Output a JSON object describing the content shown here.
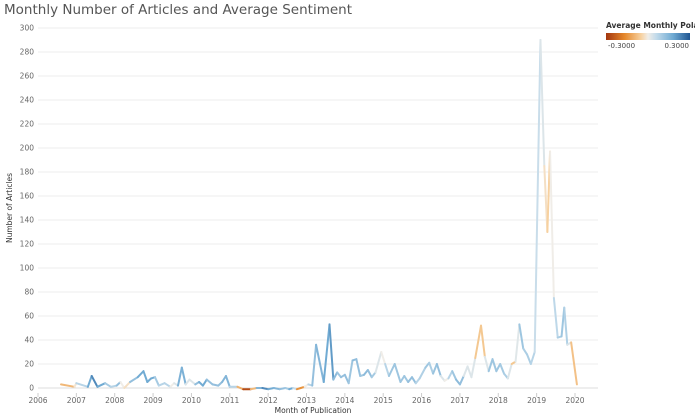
{
  "title": "Monthly Number of Articles and Average Sentiment",
  "legend": {
    "title": "Average Monthly Polari..",
    "min_label": "-0.3000",
    "max_label": "0.3000",
    "colors": [
      "#a3360f",
      "#e5882b",
      "#f7d2a2",
      "#f0ede8",
      "#c1daea",
      "#6ea9d2",
      "#1f5591"
    ]
  },
  "chart_data": {
    "type": "line",
    "title": "Monthly Number of Articles and Average Sentiment",
    "xlabel": "Month of Publication",
    "ylabel": "Number of Articles",
    "ylim": [
      0,
      300
    ],
    "xlim": [
      2006,
      2020.6
    ],
    "y_ticks": [
      0,
      20,
      40,
      60,
      80,
      100,
      120,
      140,
      160,
      180,
      200,
      220,
      240,
      260,
      280,
      300
    ],
    "x_ticks": [
      "2006",
      "2007",
      "2008",
      "2009",
      "2010",
      "2011",
      "2012",
      "2013",
      "2014",
      "2015",
      "2016",
      "2017",
      "2018",
      "2019",
      "2020"
    ],
    "grid": true,
    "color_scale": {
      "field": "Average Monthly Polarity",
      "min": -0.3,
      "max": 0.3
    },
    "series": [
      {
        "points": [
          {
            "x": 2006.6,
            "y": 3,
            "s": -0.1
          },
          {
            "x": 2006.95,
            "y": 1,
            "s": -0.08
          },
          {
            "x": 2007.0,
            "y": 4,
            "s": 0.05
          },
          {
            "x": 2007.3,
            "y": 1,
            "s": 0.1
          },
          {
            "x": 2007.4,
            "y": 10,
            "s": 0.25
          },
          {
            "x": 2007.55,
            "y": 1,
            "s": 0.2
          },
          {
            "x": 2007.75,
            "y": 4,
            "s": 0.15
          },
          {
            "x": 2007.9,
            "y": 1,
            "s": 0.05
          },
          {
            "x": 2008.05,
            "y": 2,
            "s": 0.1
          },
          {
            "x": 2008.15,
            "y": 5,
            "s": 0.15
          },
          {
            "x": 2008.25,
            "y": 0,
            "s": -0.15
          },
          {
            "x": 2008.4,
            "y": 5,
            "s": 0.1
          },
          {
            "x": 2008.6,
            "y": 9,
            "s": 0.15
          },
          {
            "x": 2008.75,
            "y": 14,
            "s": 0.2
          },
          {
            "x": 2008.85,
            "y": 5,
            "s": 0.15
          },
          {
            "x": 2008.95,
            "y": 8,
            "s": 0.2
          },
          {
            "x": 2009.05,
            "y": 9,
            "s": 0.15
          },
          {
            "x": 2009.15,
            "y": 2,
            "s": 0.05
          },
          {
            "x": 2009.3,
            "y": 4,
            "s": 0.1
          },
          {
            "x": 2009.45,
            "y": 1,
            "s": 0.05
          },
          {
            "x": 2009.55,
            "y": 4,
            "s": -0.05
          },
          {
            "x": 2009.65,
            "y": 2,
            "s": 0.1
          },
          {
            "x": 2009.75,
            "y": 17,
            "s": 0.22
          },
          {
            "x": 2009.85,
            "y": 3,
            "s": 0.1
          },
          {
            "x": 2009.95,
            "y": 7,
            "s": -0.05
          },
          {
            "x": 2010.1,
            "y": 3,
            "s": 0.1
          },
          {
            "x": 2010.2,
            "y": 5,
            "s": 0.15
          },
          {
            "x": 2010.3,
            "y": 2,
            "s": 0.2
          },
          {
            "x": 2010.4,
            "y": 7,
            "s": 0.15
          },
          {
            "x": 2010.55,
            "y": 3,
            "s": 0.1
          },
          {
            "x": 2010.7,
            "y": 2,
            "s": 0.15
          },
          {
            "x": 2010.8,
            "y": 5,
            "s": 0.1
          },
          {
            "x": 2010.9,
            "y": 10,
            "s": 0.2
          },
          {
            "x": 2011.0,
            "y": 1,
            "s": 0.1
          },
          {
            "x": 2011.2,
            "y": 1,
            "s": 0.05
          },
          {
            "x": 2011.35,
            "y": -1,
            "s": -0.25
          },
          {
            "x": 2011.55,
            "y": -1,
            "s": -0.28
          },
          {
            "x": 2011.7,
            "y": 0,
            "s": 0.1
          },
          {
            "x": 2011.85,
            "y": 0,
            "s": 0.2
          },
          {
            "x": 2012.0,
            "y": -1,
            "s": 0.25
          },
          {
            "x": 2012.15,
            "y": 0,
            "s": 0.1
          },
          {
            "x": 2012.3,
            "y": -1,
            "s": 0.2
          },
          {
            "x": 2012.45,
            "y": 0,
            "s": 0.05
          },
          {
            "x": 2012.55,
            "y": -1,
            "s": 0.15
          },
          {
            "x": 2012.65,
            "y": 0,
            "s": 0.2
          },
          {
            "x": 2012.75,
            "y": -1,
            "s": -0.1
          },
          {
            "x": 2012.85,
            "y": 0,
            "s": -0.2
          },
          {
            "x": 2012.95,
            "y": 1,
            "s": -0.1
          },
          {
            "x": 2013.05,
            "y": 3,
            "s": 0.1
          },
          {
            "x": 2013.15,
            "y": 2,
            "s": 0.05
          },
          {
            "x": 2013.25,
            "y": 36,
            "s": 0.2
          },
          {
            "x": 2013.45,
            "y": 5,
            "s": 0.1
          },
          {
            "x": 2013.6,
            "y": 53,
            "s": 0.25
          },
          {
            "x": 2013.7,
            "y": 7,
            "s": 0.15
          },
          {
            "x": 2013.8,
            "y": 13,
            "s": 0.12
          },
          {
            "x": 2013.9,
            "y": 9,
            "s": 0.1
          },
          {
            "x": 2014.0,
            "y": 11,
            "s": 0.15
          },
          {
            "x": 2014.1,
            "y": 4,
            "s": 0.1
          },
          {
            "x": 2014.2,
            "y": 23,
            "s": 0.12
          },
          {
            "x": 2014.3,
            "y": 24,
            "s": 0.15
          },
          {
            "x": 2014.4,
            "y": 10,
            "s": 0.1
          },
          {
            "x": 2014.5,
            "y": 11,
            "s": 0.12
          },
          {
            "x": 2014.6,
            "y": 15,
            "s": 0.15
          },
          {
            "x": 2014.7,
            "y": 9,
            "s": 0.1
          },
          {
            "x": 2014.8,
            "y": 13,
            "s": 0.1
          },
          {
            "x": 2014.95,
            "y": 30,
            "s": -0.05
          },
          {
            "x": 2015.05,
            "y": 20,
            "s": 0.05
          },
          {
            "x": 2015.15,
            "y": 10,
            "s": 0.1
          },
          {
            "x": 2015.3,
            "y": 20,
            "s": 0.12
          },
          {
            "x": 2015.45,
            "y": 5,
            "s": 0.1
          },
          {
            "x": 2015.55,
            "y": 10,
            "s": 0.12
          },
          {
            "x": 2015.65,
            "y": 5,
            "s": 0.1
          },
          {
            "x": 2015.75,
            "y": 9,
            "s": 0.15
          },
          {
            "x": 2015.85,
            "y": 4,
            "s": 0.1
          },
          {
            "x": 2015.95,
            "y": 8,
            "s": 0.05
          },
          {
            "x": 2016.1,
            "y": 17,
            "s": 0.12
          },
          {
            "x": 2016.2,
            "y": 21,
            "s": 0.1
          },
          {
            "x": 2016.3,
            "y": 12,
            "s": 0.08
          },
          {
            "x": 2016.4,
            "y": 20,
            "s": 0.15
          },
          {
            "x": 2016.5,
            "y": 10,
            "s": 0.1
          },
          {
            "x": 2016.6,
            "y": 6,
            "s": -0.05
          },
          {
            "x": 2016.7,
            "y": 8,
            "s": 0.05
          },
          {
            "x": 2016.8,
            "y": 14,
            "s": 0.1
          },
          {
            "x": 2016.9,
            "y": 7,
            "s": 0.12
          },
          {
            "x": 2017.0,
            "y": 3,
            "s": 0.15
          },
          {
            "x": 2017.1,
            "y": 10,
            "s": 0.1
          },
          {
            "x": 2017.2,
            "y": 18,
            "s": -0.05
          },
          {
            "x": 2017.3,
            "y": 9,
            "s": 0.1
          },
          {
            "x": 2017.4,
            "y": 25,
            "s": -0.05
          },
          {
            "x": 2017.55,
            "y": 52,
            "s": -0.08
          },
          {
            "x": 2017.65,
            "y": 26,
            "s": -0.05
          },
          {
            "x": 2017.75,
            "y": 14,
            "s": 0.1
          },
          {
            "x": 2017.85,
            "y": 24,
            "s": 0.12
          },
          {
            "x": 2017.95,
            "y": 14,
            "s": 0.1
          },
          {
            "x": 2018.05,
            "y": 20,
            "s": 0.12
          },
          {
            "x": 2018.15,
            "y": 12,
            "s": 0.08
          },
          {
            "x": 2018.25,
            "y": 8,
            "s": 0.1
          },
          {
            "x": 2018.35,
            "y": 20,
            "s": -0.05
          },
          {
            "x": 2018.45,
            "y": 22,
            "s": -0.08
          },
          {
            "x": 2018.55,
            "y": 53,
            "s": 0.12
          },
          {
            "x": 2018.65,
            "y": 33,
            "s": 0.1
          },
          {
            "x": 2018.75,
            "y": 28,
            "s": 0.08
          },
          {
            "x": 2018.85,
            "y": 20,
            "s": 0.1
          },
          {
            "x": 2018.95,
            "y": 30,
            "s": 0.05
          },
          {
            "x": 2019.1,
            "y": 290,
            "s": 0.05
          },
          {
            "x": 2019.2,
            "y": 185,
            "s": 0.0
          },
          {
            "x": 2019.28,
            "y": 130,
            "s": -0.05
          },
          {
            "x": 2019.35,
            "y": 197,
            "s": -0.05
          },
          {
            "x": 2019.45,
            "y": 75,
            "s": 0.05
          },
          {
            "x": 2019.55,
            "y": 42,
            "s": 0.08
          },
          {
            "x": 2019.65,
            "y": 43,
            "s": 0.1
          },
          {
            "x": 2019.72,
            "y": 67,
            "s": 0.12
          },
          {
            "x": 2019.8,
            "y": 36,
            "s": 0.05
          },
          {
            "x": 2019.9,
            "y": 38,
            "s": 0.0
          },
          {
            "x": 2020.05,
            "y": 3,
            "s": -0.15
          }
        ]
      }
    ]
  }
}
